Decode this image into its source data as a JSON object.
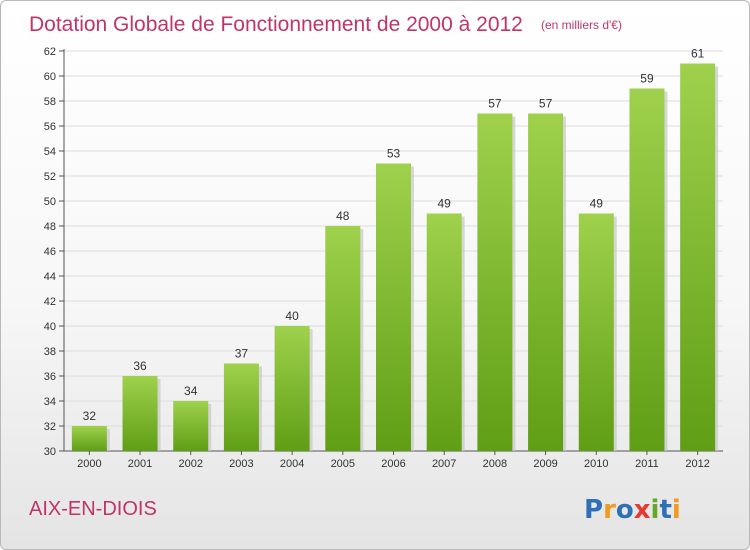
{
  "chart_data": {
    "type": "bar",
    "title": "Dotation Globale de Fonctionnement de 2000 à 2012",
    "subtitle": "(en milliers d'€)",
    "categories": [
      "2000",
      "2001",
      "2002",
      "2003",
      "2004",
      "2005",
      "2006",
      "2007",
      "2008",
      "2009",
      "2010",
      "2011",
      "2012"
    ],
    "values": [
      32,
      36,
      34,
      37,
      40,
      48,
      53,
      49,
      57,
      57,
      49,
      59,
      61
    ],
    "ylim": [
      30,
      62
    ],
    "yticks": [
      30,
      32,
      34,
      36,
      38,
      40,
      42,
      44,
      46,
      48,
      50,
      52,
      54,
      56,
      58,
      60,
      62
    ],
    "grid": true,
    "bar_color": "#7fbf2a",
    "xlabel": "",
    "ylabel": ""
  },
  "footer": {
    "commune": "AIX-EN-DIOIS",
    "logo_letters": [
      {
        "ch": "P",
        "color": "#2f6fb5"
      },
      {
        "ch": "r",
        "color": "#f29a1d"
      },
      {
        "ch": "o",
        "color": "#2f6fb5"
      },
      {
        "ch": "x",
        "color": "#e73a2f"
      },
      {
        "ch": "i",
        "color": "#65a829"
      },
      {
        "ch": "t",
        "color": "#2f6fb5"
      },
      {
        "ch": "i",
        "color": "#f29a1d"
      }
    ]
  }
}
